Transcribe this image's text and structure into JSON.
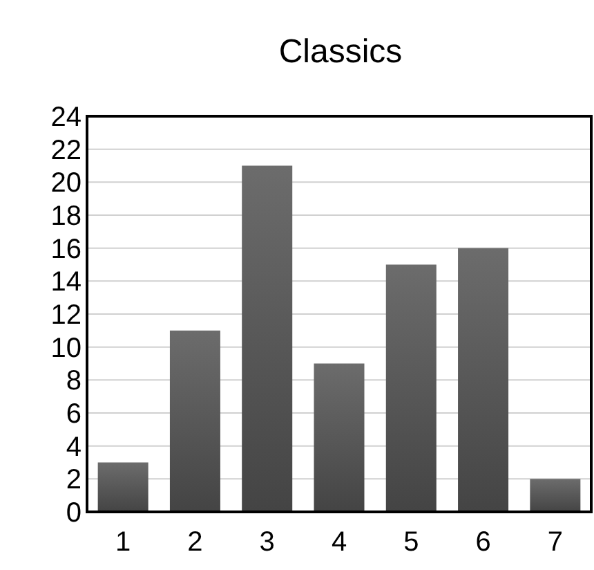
{
  "chart_data": {
    "type": "bar",
    "title": "Classics",
    "categories": [
      "1",
      "2",
      "3",
      "4",
      "5",
      "6",
      "7"
    ],
    "values": [
      3,
      11,
      21,
      9,
      15,
      16,
      2
    ],
    "color": "#575757",
    "ylim": [
      0,
      24
    ],
    "yticks": [
      0,
      2,
      4,
      6,
      8,
      10,
      12,
      14,
      16,
      18,
      20,
      22,
      24
    ],
    "grid": "y"
  }
}
